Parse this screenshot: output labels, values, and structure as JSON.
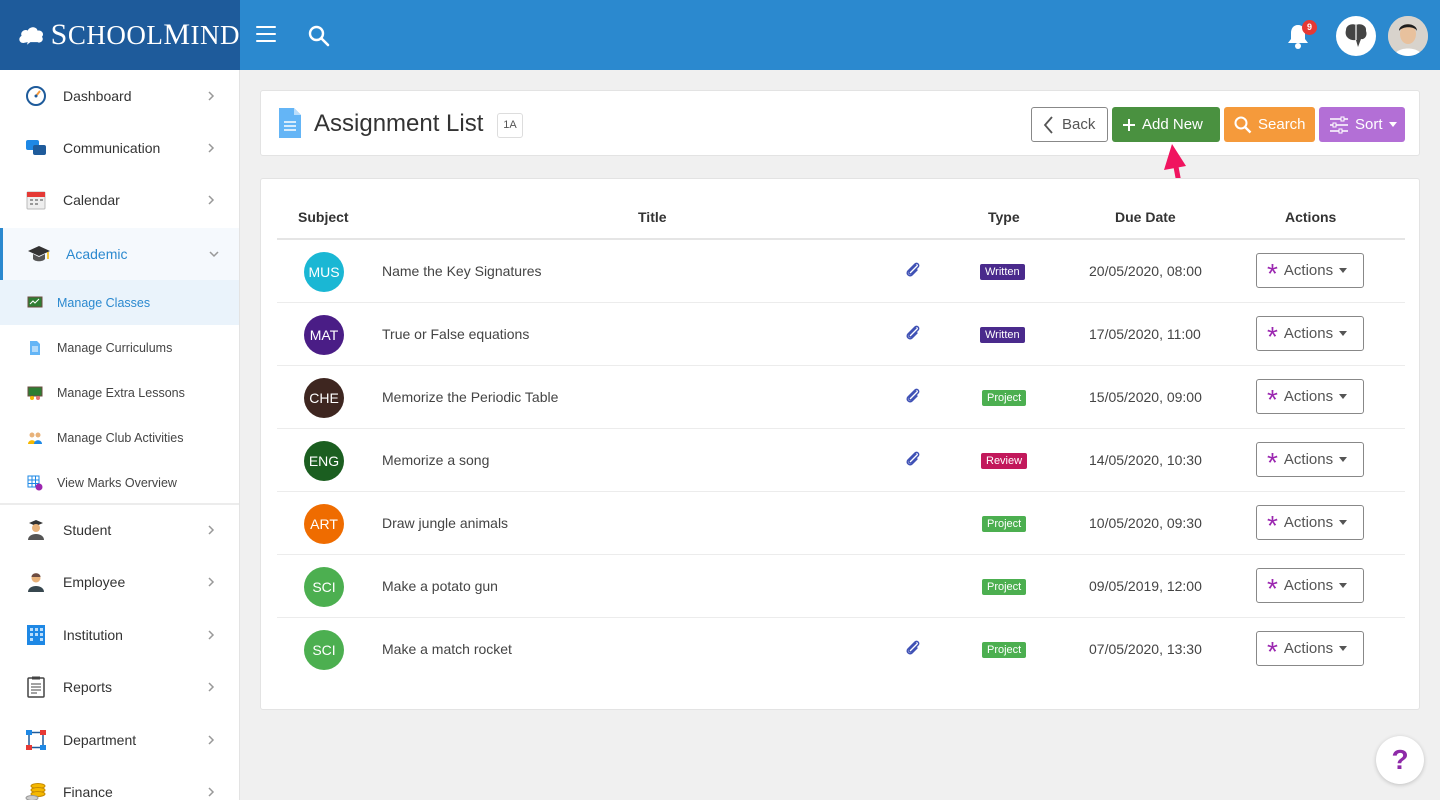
{
  "brand": {
    "name_first": "S",
    "name_rest_1": "CHOOL",
    "name_mid": "M",
    "name_rest_2": "IND"
  },
  "topbar": {
    "notification_count": "9"
  },
  "sidebar": {
    "items": [
      {
        "label": "Dashboard",
        "icon": "dashboard-icon"
      },
      {
        "label": "Communication",
        "icon": "chat-icon"
      },
      {
        "label": "Calendar",
        "icon": "calendar-icon"
      },
      {
        "label": "Academic",
        "icon": "graduation-cap-icon"
      }
    ],
    "sub_items": [
      {
        "label": "Manage Classes",
        "icon": "chalkboard-icon"
      },
      {
        "label": "Manage Curriculums",
        "icon": "document-icon"
      },
      {
        "label": "Manage Extra Lessons",
        "icon": "lesson-board-icon"
      },
      {
        "label": "Manage Club Activities",
        "icon": "group-icon"
      },
      {
        "label": "View Marks Overview",
        "icon": "grid-icon"
      }
    ],
    "items_after": [
      {
        "label": "Student",
        "icon": "student-icon"
      },
      {
        "label": "Employee",
        "icon": "employee-icon"
      },
      {
        "label": "Institution",
        "icon": "building-icon"
      },
      {
        "label": "Reports",
        "icon": "clipboard-icon"
      },
      {
        "label": "Department",
        "icon": "org-chart-icon"
      },
      {
        "label": "Finance",
        "icon": "coins-icon"
      }
    ]
  },
  "header": {
    "title": "Assignment List",
    "class_badge": "1A",
    "back_label": "Back",
    "add_label": "Add New",
    "search_label": "Search",
    "sort_label": "Sort"
  },
  "table": {
    "columns": {
      "subject": "Subject",
      "title": "Title",
      "type": "Type",
      "due": "Due Date",
      "actions": "Actions"
    },
    "action_label": "Actions",
    "rows": [
      {
        "subject": "MUS",
        "color": "#1ab7d4",
        "title": "Name the Key Signatures",
        "attachment": true,
        "type": "Written",
        "type_color": "#4a2a8c",
        "due": "20/05/2020, 08:00"
      },
      {
        "subject": "MAT",
        "color": "#4a1d86",
        "title": "True or False equations",
        "attachment": true,
        "type": "Written",
        "type_color": "#4a2a8c",
        "due": "17/05/2020, 11:00"
      },
      {
        "subject": "CHE",
        "color": "#3e2620",
        "title": "Memorize the Periodic Table",
        "attachment": true,
        "type": "Project",
        "type_color": "#4caf50",
        "due": "15/05/2020, 09:00"
      },
      {
        "subject": "ENG",
        "color": "#1b5e20",
        "title": "Memorize a song",
        "attachment": true,
        "type": "Review",
        "type_color": "#c2185b",
        "due": "14/05/2020, 10:30"
      },
      {
        "subject": "ART",
        "color": "#ef6c00",
        "title": "Draw jungle animals",
        "attachment": false,
        "type": "Project",
        "type_color": "#4caf50",
        "due": "10/05/2020, 09:30"
      },
      {
        "subject": "SCI",
        "color": "#4caf50",
        "title": "Make a potato gun",
        "attachment": false,
        "type": "Project",
        "type_color": "#4caf50",
        "due": "09/05/2019, 12:00"
      },
      {
        "subject": "SCI",
        "color": "#4caf50",
        "title": "Make a match rocket",
        "attachment": true,
        "type": "Project",
        "type_color": "#4caf50",
        "due": "07/05/2020, 13:30"
      }
    ]
  },
  "help": {
    "label": "?"
  }
}
